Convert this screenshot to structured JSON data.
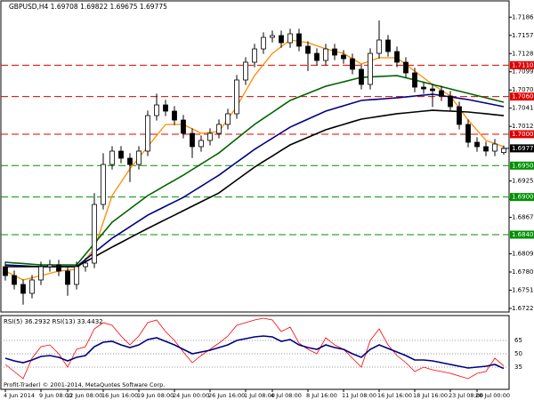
{
  "chart_data": [
    {
      "type": "candlestick",
      "title": "GBPUSD,H4 1.69708 1.69822 1.69675 1.69775",
      "categories": [
        "4 Jun 2014",
        null,
        null,
        null,
        "9 Jun 08:00",
        null,
        null,
        "12 Jun 08:00",
        null,
        null,
        null,
        "16 Jun 16:00",
        null,
        null,
        null,
        "19 Jun 08:00",
        null,
        null,
        null,
        "24 Jun 00:00",
        null,
        null,
        null,
        "26 Jun 16:00",
        null,
        null,
        null,
        "1 Jul 08:00",
        null,
        null,
        "4 Jul 08:00",
        null,
        null,
        null,
        "8 Jul 16:00",
        null,
        null,
        null,
        "11 Jul 08:00",
        null,
        null,
        null,
        "16 Jul 16:00",
        null,
        null,
        null,
        "18 Jul 16:00",
        null,
        null,
        null,
        "23 Jul 08:00",
        null,
        null,
        "28 Jul 00:00",
        null,
        null,
        null
      ],
      "open": [
        1.6789,
        1.67748,
        1.67607,
        1.67465,
        1.67678,
        1.6789,
        1.67918,
        1.67819,
        1.67607,
        1.6789,
        1.67947,
        1.68881,
        1.69518,
        1.69731,
        1.69618,
        1.69518,
        1.69731,
        1.70297,
        1.70467,
        1.70368,
        1.70226,
        1.70014,
        1.69802,
        1.69901,
        1.70014,
        1.70156,
        1.70326,
        1.70864,
        1.71147,
        1.71359,
        1.71543,
        1.71572,
        1.71458,
        1.716,
        1.71402,
        1.71288,
        1.71175,
        1.71359,
        1.7126,
        1.71203,
        1.71034,
        1.70793,
        1.71288,
        1.71501,
        1.71317,
        1.71147,
        1.70977,
        1.7075,
        1.70722,
        1.70694,
        1.70609,
        1.70439,
        1.70156,
        1.69872,
        1.69802,
        1.69731,
        1.69708
      ],
      "high": [
        1.6797,
        1.67828,
        1.67687,
        1.67758,
        1.6797,
        1.67998,
        1.67998,
        1.67899,
        1.6797,
        1.68027,
        1.69061,
        1.69698,
        1.69811,
        1.69811,
        1.69698,
        1.69811,
        1.70377,
        1.70647,
        1.70547,
        1.70448,
        1.70306,
        1.70094,
        1.69981,
        1.70094,
        1.70236,
        1.70406,
        1.70944,
        1.71227,
        1.71439,
        1.71623,
        1.71652,
        1.71652,
        1.7168,
        1.7168,
        1.71482,
        1.71368,
        1.71439,
        1.71439,
        1.7134,
        1.71283,
        1.71114,
        1.71368,
        1.71812,
        1.71581,
        1.71397,
        1.71227,
        1.71057,
        1.7083,
        1.70802,
        1.70774,
        1.70689,
        1.70519,
        1.70236,
        1.69952,
        1.69882,
        1.69924,
        1.69822
      ],
      "low": [
        1.67668,
        1.67527,
        1.67285,
        1.67385,
        1.67598,
        1.6781,
        1.67739,
        1.67427,
        1.67527,
        1.6781,
        1.67867,
        1.68801,
        1.69438,
        1.69538,
        1.69238,
        1.69438,
        1.69651,
        1.70217,
        1.70288,
        1.70146,
        1.69934,
        1.69622,
        1.69722,
        1.69821,
        1.69934,
        1.70076,
        1.70246,
        1.70784,
        1.71067,
        1.71279,
        1.71463,
        1.71378,
        1.71378,
        1.71322,
        1.71008,
        1.71095,
        1.71095,
        1.7118,
        1.71123,
        1.70954,
        1.70713,
        1.70713,
        1.71208,
        1.71237,
        1.71067,
        1.70897,
        1.7067,
        1.70642,
        1.70434,
        1.70529,
        1.70359,
        1.70076,
        1.69792,
        1.69722,
        1.69651,
        1.69651,
        1.69675
      ],
      "close": [
        1.67748,
        1.67607,
        1.67465,
        1.67678,
        1.6789,
        1.67918,
        1.67819,
        1.67607,
        1.6789,
        1.67947,
        1.68881,
        1.69518,
        1.69731,
        1.69618,
        1.69518,
        1.69731,
        1.70297,
        1.70467,
        1.70368,
        1.70226,
        1.70014,
        1.69802,
        1.69901,
        1.70014,
        1.70156,
        1.70326,
        1.70864,
        1.71147,
        1.71359,
        1.71543,
        1.71572,
        1.71458,
        1.716,
        1.71402,
        1.71288,
        1.71175,
        1.71359,
        1.7126,
        1.71203,
        1.71034,
        1.70793,
        1.71288,
        1.71501,
        1.71317,
        1.71147,
        1.70977,
        1.7075,
        1.70722,
        1.70694,
        1.70609,
        1.70439,
        1.70156,
        1.69872,
        1.69802,
        1.69731,
        1.69844,
        1.69775
      ],
      "up_color": "#ffffff",
      "down_color": "#000000",
      "lines": [
        {
          "color": "#ff8c00",
          "values": [
            1.67819,
            1.67749,
            1.67678,
            1.67713,
            1.67748,
            1.67784,
            1.67819,
            1.67833,
            1.67847,
            1.6801,
            1.68173,
            1.68598,
            1.69023,
            1.69236,
            1.69448,
            1.69625,
            1.69802,
            1.69979,
            1.70156,
            1.70156,
            1.70156,
            1.70085,
            1.70014,
            1.70028,
            1.70042,
            1.70241,
            1.70439,
            1.70687,
            1.70934,
            1.71111,
            1.71288,
            1.71395,
            1.71501,
            1.7148,
            1.71458,
            1.71409,
            1.71359,
            1.71324,
            1.71288,
            1.71203,
            1.71118,
            1.71168,
            1.71218,
            1.71218,
            1.71218,
            1.71112,
            1.71005,
            1.70899,
            1.70793,
            1.70701,
            1.70609,
            1.70418,
            1.70226,
            1.70064,
            1.69901,
            1.69852,
            1.69802
          ]
        },
        {
          "color": "#006400",
          "values": [
            1.67961,
            1.6795,
            1.6794,
            1.67929,
            1.67918,
            1.67918,
            1.67918,
            1.67918,
            1.67918,
            1.68088,
            1.68258,
            1.68428,
            1.68598,
            1.68704,
            1.68811,
            1.68917,
            1.69023,
            1.69104,
            1.69186,
            1.69267,
            1.69348,
            1.69437,
            1.69525,
            1.69614,
            1.69702,
            1.69816,
            1.69929,
            1.70043,
            1.70156,
            1.70252,
            1.70347,
            1.70443,
            1.70538,
            1.70595,
            1.70651,
            1.70708,
            1.70764,
            1.708,
            1.70835,
            1.70871,
            1.70906,
            1.70913,
            1.7092,
            1.70927,
            1.70934,
            1.70899,
            1.70864,
            1.70828,
            1.70793,
            1.70758,
            1.70722,
            1.70687,
            1.70651,
            1.70616,
            1.70581,
            1.70545,
            1.7051
          ]
        },
        {
          "color": "#000080",
          "values": [
            1.67918,
            1.67911,
            1.67904,
            1.67897,
            1.6789,
            1.6789,
            1.6789,
            1.6789,
            1.6789,
            1.68003,
            1.68117,
            1.6823,
            1.68343,
            1.68435,
            1.68527,
            1.68619,
            1.68711,
            1.68782,
            1.68853,
            1.68923,
            1.68994,
            1.69083,
            1.69171,
            1.6926,
            1.69348,
            1.69451,
            1.69554,
            1.69656,
            1.69759,
            1.69848,
            1.69936,
            1.70025,
            1.70113,
            1.70177,
            1.70241,
            1.70304,
            1.70368,
            1.70411,
            1.70453,
            1.70496,
            1.70538,
            1.70549,
            1.70559,
            1.7057,
            1.7058,
            1.70594,
            1.70609,
            1.70623,
            1.70637,
            1.70616,
            1.70595,
            1.70573,
            1.70552,
            1.70524,
            1.70496,
            1.70467,
            1.70439
          ]
        },
        {
          "color": "#000000",
          "values": [
            1.6789,
            1.6789,
            1.6789,
            1.6789,
            1.6789,
            1.6789,
            1.6789,
            1.6789,
            1.6789,
            1.67968,
            1.68046,
            1.68124,
            1.68202,
            1.68276,
            1.68351,
            1.68425,
            1.68499,
            1.6857,
            1.68641,
            1.68711,
            1.68782,
            1.68853,
            1.68924,
            1.68994,
            1.69065,
            1.69168,
            1.69271,
            1.69373,
            1.69476,
            1.69565,
            1.69653,
            1.69742,
            1.6983,
            1.6989,
            1.69951,
            1.70011,
            1.70071,
            1.70114,
            1.70156,
            1.70199,
            1.70241,
            1.70262,
            1.70284,
            1.70305,
            1.70326,
            1.7034,
            1.70354,
            1.70368,
            1.70382,
            1.70375,
            1.70368,
            1.70361,
            1.70354,
            1.7034,
            1.70326,
            1.70311,
            1.70297
          ]
        }
      ],
      "levels": [
        {
          "value": 1.711,
          "label": "1.71100",
          "color": "#e00000"
        },
        {
          "value": 1.706,
          "label": "1.70600",
          "color": "#e00000"
        },
        {
          "value": 1.7,
          "label": "1.70000",
          "color": "#e00000"
        },
        {
          "value": 1.695,
          "label": "1.69500",
          "color": "#009000"
        },
        {
          "value": 1.69,
          "label": "1.69000",
          "color": "#009000"
        },
        {
          "value": 1.684,
          "label": "1.68400",
          "color": "#009000"
        }
      ],
      "last_price": 1.69775,
      "ylim": [
        1.67182,
        1.7211
      ],
      "yticks": [
        1.71865,
        1.71575,
        1.71285,
        1.70995,
        1.70705,
        1.70415,
        1.70125,
        1.69255,
        1.68965,
        1.68675,
        1.68095,
        1.67805,
        1.67515,
        1.67225
      ]
    },
    {
      "type": "line",
      "title": "RSI(5) 36.2932 RSI(13) 33.4432",
      "series": [
        {
          "color": "#ff0000",
          "values": [
            38,
            30,
            22,
            45,
            58,
            60,
            50,
            35,
            55,
            58,
            78,
            85,
            82,
            70,
            60,
            70,
            85,
            88,
            75,
            65,
            52,
            40,
            48,
            55,
            62,
            70,
            82,
            85,
            88,
            90,
            88,
            75,
            80,
            62,
            55,
            50,
            68,
            60,
            55,
            45,
            35,
            65,
            78,
            60,
            48,
            40,
            30,
            35,
            32,
            30,
            28,
            25,
            22,
            28,
            30,
            45,
            36.2932
          ]
        },
        {
          "color": "#000080",
          "values": [
            45,
            42,
            40,
            43,
            47,
            48,
            46,
            42,
            46,
            48,
            58,
            63,
            64,
            60,
            57,
            60,
            66,
            68,
            64,
            60,
            55,
            50,
            52,
            54,
            57,
            60,
            65,
            67,
            69,
            70,
            69,
            64,
            66,
            60,
            57,
            55,
            60,
            57,
            55,
            50,
            46,
            55,
            60,
            56,
            52,
            48,
            43,
            43,
            42,
            40,
            38,
            36,
            34,
            35,
            36,
            38,
            33.4432
          ]
        }
      ],
      "ylim": [
        10,
        90
      ],
      "yticks": [
        35,
        50,
        65
      ]
    }
  ],
  "copyright": "Profit-Trader) © 2001-2014, MetaQuotes Software Corp."
}
